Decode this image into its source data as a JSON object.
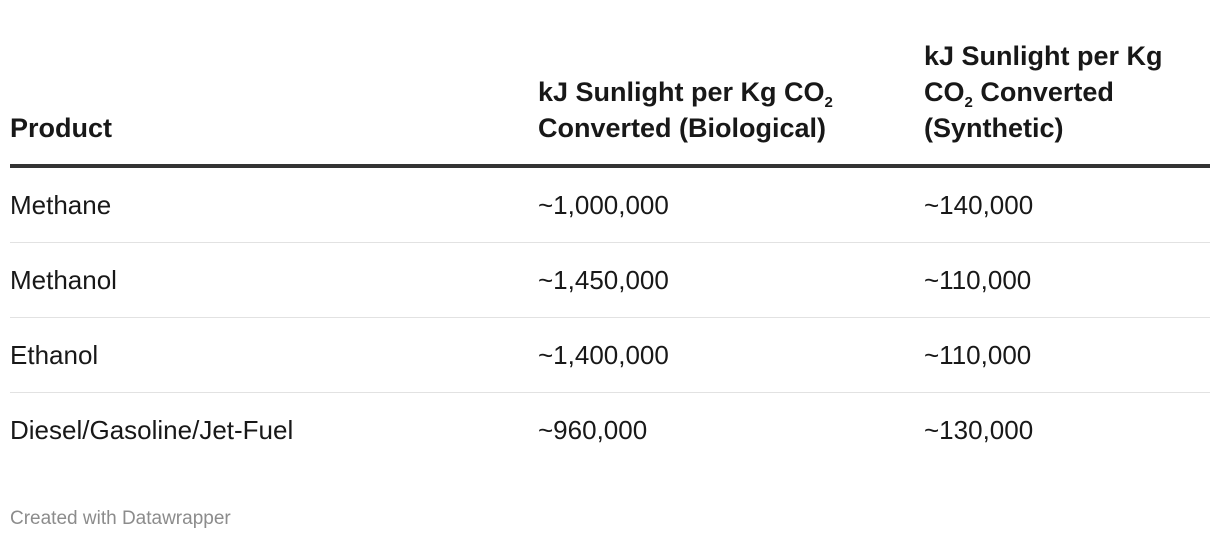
{
  "table": {
    "columns": [
      {
        "text": "Product"
      },
      {
        "text_before": "kJ Sunlight per Kg CO",
        "subscript": "2",
        "text_after": "Converted (Biological)"
      },
      {
        "text_before": "kJ Sunlight per Kg CO",
        "subscript": "2",
        "text_after": "Converted (Synthetic)"
      }
    ],
    "rows": [
      [
        "Methane",
        "~1,000,000",
        "~140,000"
      ],
      [
        "Methanol",
        "~1,450,000",
        "~110,000"
      ],
      [
        "Ethanol",
        "~1,400,000",
        "~110,000"
      ],
      [
        "Diesel/Gasoline/Jet-Fuel",
        "~960,000",
        "~130,000"
      ]
    ]
  },
  "footer": "Created with Datawrapper"
}
